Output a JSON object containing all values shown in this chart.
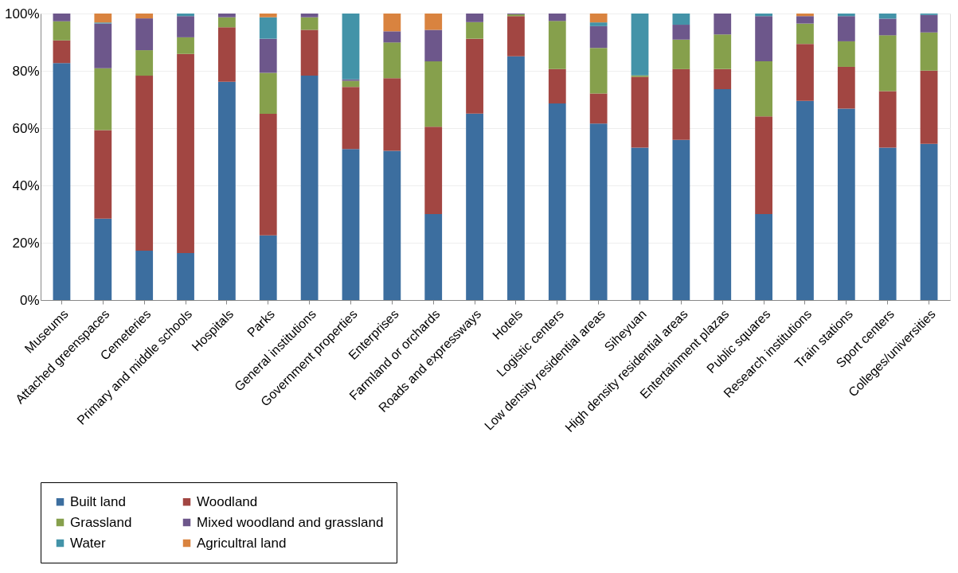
{
  "chart_data": {
    "type": "bar",
    "stacked": true,
    "categories": [
      "Museums",
      "Attached greenspaces",
      "Cemeteries",
      "Primary and middle schools",
      "Hospitals",
      "Parks",
      "General institutions",
      "Government properties",
      "Enterprises",
      "Farmland or orchards",
      "Roads and expressways",
      "Hotels",
      "Logistic centers",
      "Low density residential areas",
      "Siheyuan",
      "High density residential areas",
      "Entertainment plazas",
      "Public squares",
      "Research institutions",
      "Train stations",
      "Sport centers",
      "Colleges/universities"
    ],
    "series": [
      {
        "name": "Built land",
        "color": "#3c6e9f",
        "values": [
          82.7,
          28.4,
          17.2,
          16.4,
          76.2,
          22.6,
          78.3,
          52.7,
          52.1,
          30.0,
          65.1,
          85.1,
          68.6,
          61.6,
          53.2,
          55.9,
          73.6,
          30.0,
          69.5,
          66.8,
          53.2,
          54.5
        ]
      },
      {
        "name": "Woodland",
        "color": "#a24642",
        "values": [
          7.9,
          30.9,
          61.1,
          69.5,
          19.0,
          42.4,
          16.0,
          21.7,
          25.3,
          30.5,
          26.1,
          14.0,
          12.0,
          10.5,
          24.7,
          24.7,
          7.0,
          34.1,
          19.9,
          14.6,
          19.7,
          25.6
        ]
      },
      {
        "name": "Grassland",
        "color": "#86a04c",
        "values": [
          6.7,
          21.6,
          8.9,
          5.8,
          3.5,
          14.3,
          4.4,
          2.1,
          12.5,
          22.8,
          5.8,
          0.6,
          16.8,
          15.9,
          0.5,
          10.3,
          12.1,
          19.2,
          7.1,
          8.9,
          19.5,
          13.3
        ]
      },
      {
        "name": "Mixed woodland and grassland",
        "color": "#6d578b",
        "values": [
          2.7,
          15.6,
          11.1,
          7.4,
          1.3,
          11.9,
          1.3,
          0.5,
          3.9,
          11.0,
          3.0,
          0.3,
          2.6,
          7.6,
          0,
          5.2,
          7.3,
          15.8,
          2.6,
          8.8,
          5.8,
          6.1
        ]
      },
      {
        "name": "Water",
        "color": "#4393a8",
        "values": [
          0,
          0.4,
          0,
          0.9,
          0,
          7.5,
          0,
          23.0,
          0,
          0,
          0,
          0,
          0,
          1.3,
          21.6,
          3.9,
          0,
          0.9,
          0,
          0.9,
          1.8,
          0.5
        ]
      },
      {
        "name": "Agricultral land",
        "color": "#d9833f",
        "values": [
          0,
          3.1,
          1.7,
          0,
          0,
          1.3,
          0,
          0,
          6.2,
          5.7,
          0,
          0,
          0,
          3.1,
          0,
          0,
          0,
          0,
          0.9,
          0,
          0,
          0
        ]
      }
    ],
    "ylim": [
      0,
      100
    ],
    "yticks": [
      {
        "value": 0,
        "label": "0%"
      },
      {
        "value": 20,
        "label": "20%"
      },
      {
        "value": 40,
        "label": "40%"
      },
      {
        "value": 60,
        "label": "60%"
      },
      {
        "value": 80,
        "label": "80%"
      },
      {
        "value": 100,
        "label": "100%"
      }
    ],
    "grid": "y",
    "legend": "bottom"
  }
}
